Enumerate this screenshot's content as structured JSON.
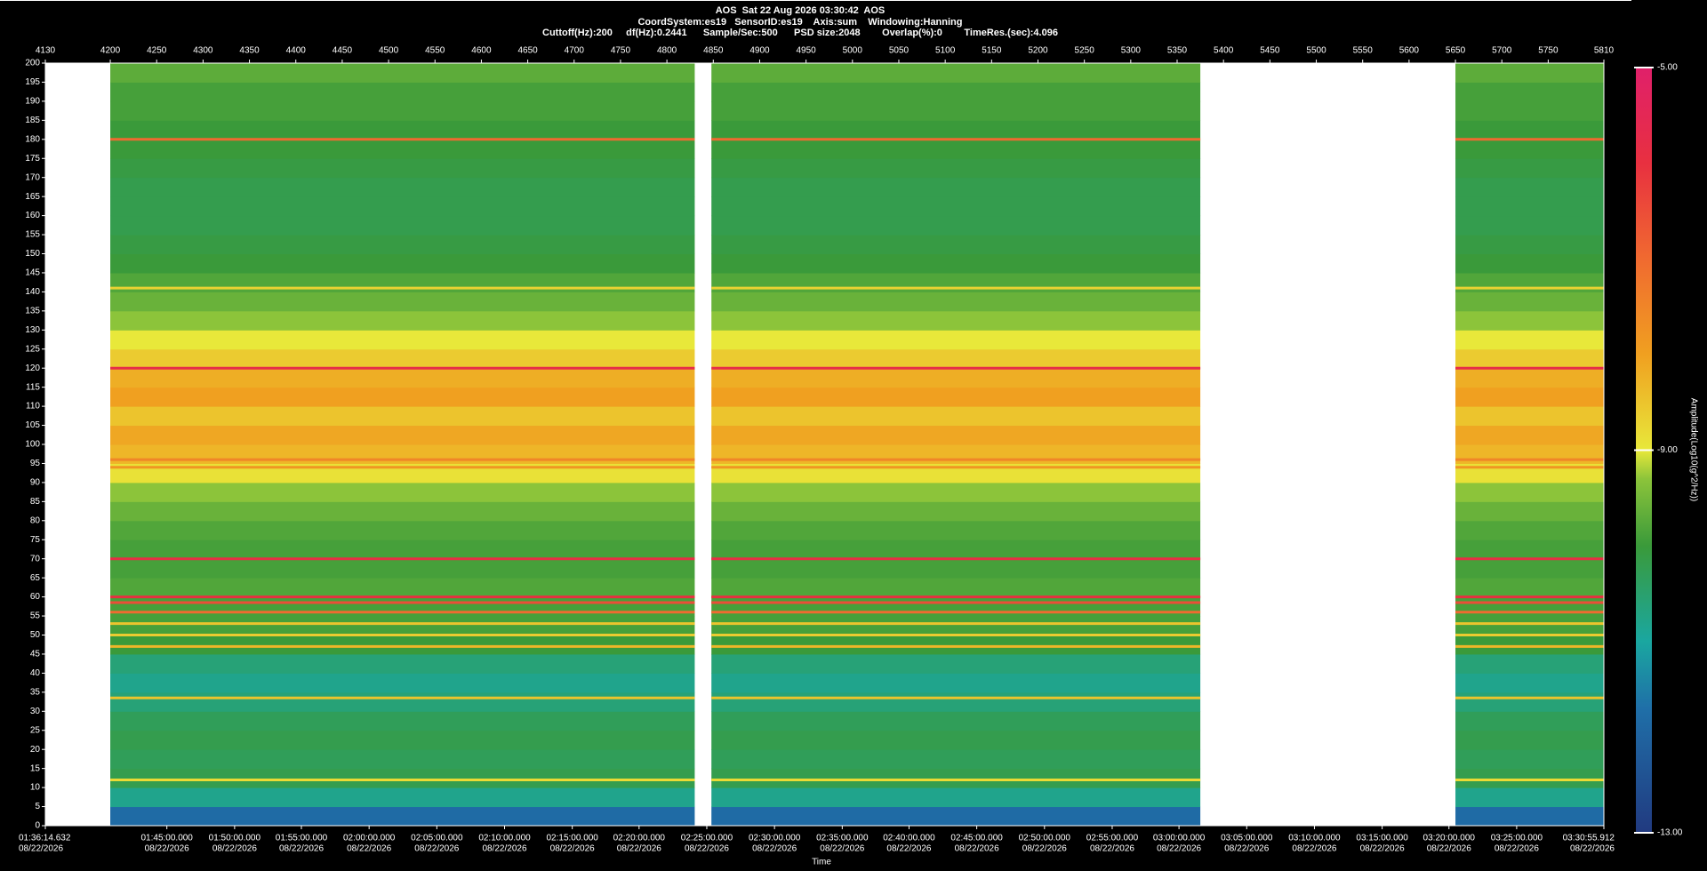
{
  "chart_data": {
    "type": "spectrogram",
    "title": "AOS  Sat 22 Aug 2026 03:30:42  AOS",
    "subtitle": "CoordSystem:es19   SensorID:es19    Axis:sum    Windowing:Hanning",
    "settings_line": "Cuttoff(Hz):200     df(Hz):0.2441      Sample/Sec:500      PSD size:2048        Overlap(%):0        TimeRes.(sec):4.096",
    "x_label": "Time",
    "colorbar_label": "Amplitude(Log10(g^2/Hz))",
    "xlim": [
      4130,
      5810
    ],
    "xticks": [
      4130,
      4200,
      4250,
      4300,
      4350,
      4400,
      4450,
      4500,
      4550,
      4600,
      4650,
      4700,
      4750,
      4800,
      4850,
      4900,
      4950,
      5000,
      5050,
      5100,
      5150,
      5200,
      5250,
      5300,
      5350,
      5400,
      5450,
      5500,
      5550,
      5600,
      5650,
      5700,
      5750,
      5810
    ],
    "x2ticks": [
      {
        "value": 4130,
        "label": "01:36:14.632",
        "date": "08/22/2026"
      },
      {
        "value": 4261,
        "label": "01:45:00.000",
        "date": "08/22/2026"
      },
      {
        "value": 4334,
        "label": "01:50:00.000",
        "date": "08/22/2026"
      },
      {
        "value": 4406,
        "label": "01:55:00.000",
        "date": "08/22/2026"
      },
      {
        "value": 4479,
        "label": "02:00:00.000",
        "date": "08/22/2026"
      },
      {
        "value": 4552,
        "label": "02:05:00.000",
        "date": "08/22/2026"
      },
      {
        "value": 4625,
        "label": "02:10:00.000",
        "date": "08/22/2026"
      },
      {
        "value": 4698,
        "label": "02:15:00.000",
        "date": "08/22/2026"
      },
      {
        "value": 4770,
        "label": "02:20:00.000",
        "date": "08/22/2026"
      },
      {
        "value": 4843,
        "label": "02:25:00.000",
        "date": "08/22/2026"
      },
      {
        "value": 4916,
        "label": "02:30:00.000",
        "date": "08/22/2026"
      },
      {
        "value": 4989,
        "label": "02:35:00.000",
        "date": "08/22/2026"
      },
      {
        "value": 5061,
        "label": "02:40:00.000",
        "date": "08/22/2026"
      },
      {
        "value": 5134,
        "label": "02:45:00.000",
        "date": "08/22/2026"
      },
      {
        "value": 5207,
        "label": "02:50:00.000",
        "date": "08/22/2026"
      },
      {
        "value": 5280,
        "label": "02:55:00.000",
        "date": "08/22/2026"
      },
      {
        "value": 5352,
        "label": "03:00:00.000",
        "date": "08/22/2026"
      },
      {
        "value": 5425,
        "label": "03:05:00.000",
        "date": "08/22/2026"
      },
      {
        "value": 5498,
        "label": "03:10:00.000",
        "date": "08/22/2026"
      },
      {
        "value": 5571,
        "label": "03:15:00.000",
        "date": "08/22/2026"
      },
      {
        "value": 5643,
        "label": "03:20:00.000",
        "date": "08/22/2026"
      },
      {
        "value": 5716,
        "label": "03:25:00.000",
        "date": "08/22/2026"
      },
      {
        "value": 5810,
        "label": "03:30:55.912",
        "date": "08/22/2026"
      }
    ],
    "ylim": [
      0,
      200
    ],
    "yticks": [
      0,
      5,
      10,
      15,
      20,
      25,
      30,
      35,
      40,
      45,
      50,
      55,
      60,
      65,
      70,
      75,
      80,
      85,
      90,
      95,
      100,
      105,
      110,
      115,
      120,
      125,
      130,
      135,
      140,
      145,
      150,
      155,
      160,
      165,
      170,
      175,
      180,
      185,
      190,
      195,
      200
    ],
    "segments": [
      [
        4200,
        4830
      ],
      [
        4848,
        5375
      ],
      [
        5650,
        5810
      ]
    ],
    "bins": [
      0,
      5,
      10,
      15,
      20,
      25,
      30,
      35,
      40,
      45,
      50,
      55,
      60,
      65,
      70,
      75,
      80,
      85,
      90,
      95,
      100,
      105,
      110,
      115,
      120,
      125,
      130,
      135,
      140,
      145,
      150,
      155,
      160,
      165,
      170,
      175,
      180,
      185,
      190,
      195,
      200
    ],
    "amplitude": [
      -11.8,
      -10.8,
      -10.2,
      -10.3,
      -10.2,
      -10.3,
      -10.6,
      -10.8,
      -10.6,
      -10.0,
      -9.9,
      -9.9,
      -9.8,
      -9.9,
      -9.9,
      -9.8,
      -9.6,
      -9.3,
      -8.9,
      -8.3,
      -8.1,
      -8.5,
      -8.0,
      -8.2,
      -8.6,
      -9.0,
      -9.3,
      -9.6,
      -9.8,
      -10.0,
      -10.1,
      -10.2,
      -10.2,
      -10.2,
      -10.1,
      -10.0,
      -10.0,
      -9.9,
      -9.9,
      -9.7
    ],
    "lines": [
      {
        "freq": 12,
        "amplitude": -8.8
      },
      {
        "freq": 33.5,
        "amplitude": -8.5
      },
      {
        "freq": 47,
        "amplitude": -8.3
      },
      {
        "freq": 50,
        "amplitude": -8.6
      },
      {
        "freq": 53,
        "amplitude": -8.5
      },
      {
        "freq": 56,
        "amplitude": -7.0
      },
      {
        "freq": 58.5,
        "amplitude": -6.5
      },
      {
        "freq": 60,
        "amplitude": -6.0
      },
      {
        "freq": 70,
        "amplitude": -5.9
      },
      {
        "freq": 94,
        "amplitude": -7.8
      },
      {
        "freq": 96,
        "amplitude": -7.5
      },
      {
        "freq": 120,
        "amplitude": -5.8
      },
      {
        "freq": 141,
        "amplitude": -8.7
      },
      {
        "freq": 180,
        "amplitude": -7.0
      }
    ],
    "clim": [
      -13,
      -5
    ],
    "cticks": [
      {
        "value": -13,
        "label": "-13.00"
      },
      {
        "value": -9,
        "label": "-9.00"
      },
      {
        "value": -5,
        "label": "-5.00"
      }
    ],
    "colorscale": [
      {
        "value": -13,
        "color": "#213a80"
      },
      {
        "value": -11.7,
        "color": "#1f6fa8"
      },
      {
        "value": -11,
        "color": "#1aa7a0"
      },
      {
        "value": -10,
        "color": "#3a9a3a"
      },
      {
        "value": -9.3,
        "color": "#8cc43a"
      },
      {
        "value": -9,
        "color": "#e8e83a"
      },
      {
        "value": -8,
        "color": "#f0a020"
      },
      {
        "value": -7,
        "color": "#f06a30"
      },
      {
        "value": -6,
        "color": "#e83040"
      },
      {
        "value": -5,
        "color": "#e0206a"
      }
    ]
  }
}
